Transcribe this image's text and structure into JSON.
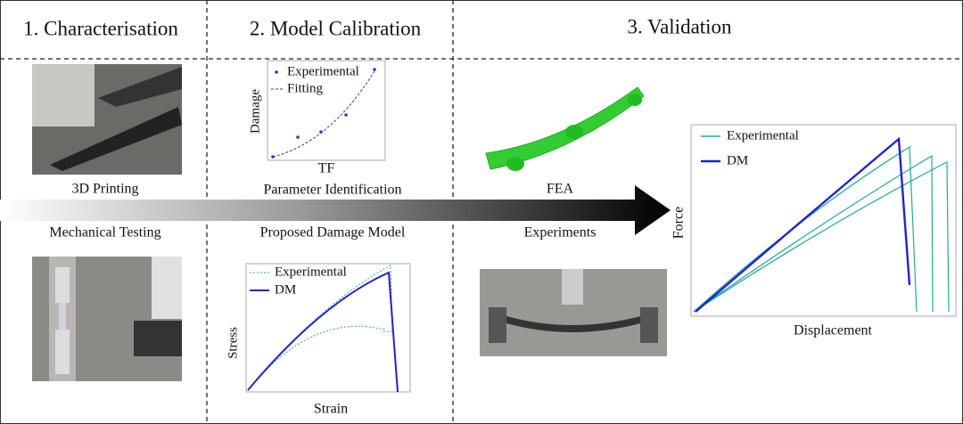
{
  "header": {
    "columns": [
      "1. Characterisation",
      "2. Model Calibration",
      "3. Validation"
    ]
  },
  "characterisation": {
    "labels": [
      "3D Printing",
      "Mechanical Testing"
    ]
  },
  "calibration": {
    "fit_plot": {
      "legend": [
        "Experimental",
        "Fitting"
      ],
      "y_label": "Damage",
      "x_label": "TF"
    },
    "captions": [
      "Parameter Identification",
      "Proposed Damage Model"
    ],
    "stress_plot": {
      "legend": [
        "Experimental",
        "DM"
      ],
      "y_label": "Stress",
      "x_label": "Strain"
    }
  },
  "validation": {
    "captions": [
      "FEA",
      "Experiments"
    ],
    "force_plot": {
      "legend": [
        "Experimental",
        "DM"
      ],
      "y_label": "Force",
      "x_label": "Displacement"
    }
  }
}
